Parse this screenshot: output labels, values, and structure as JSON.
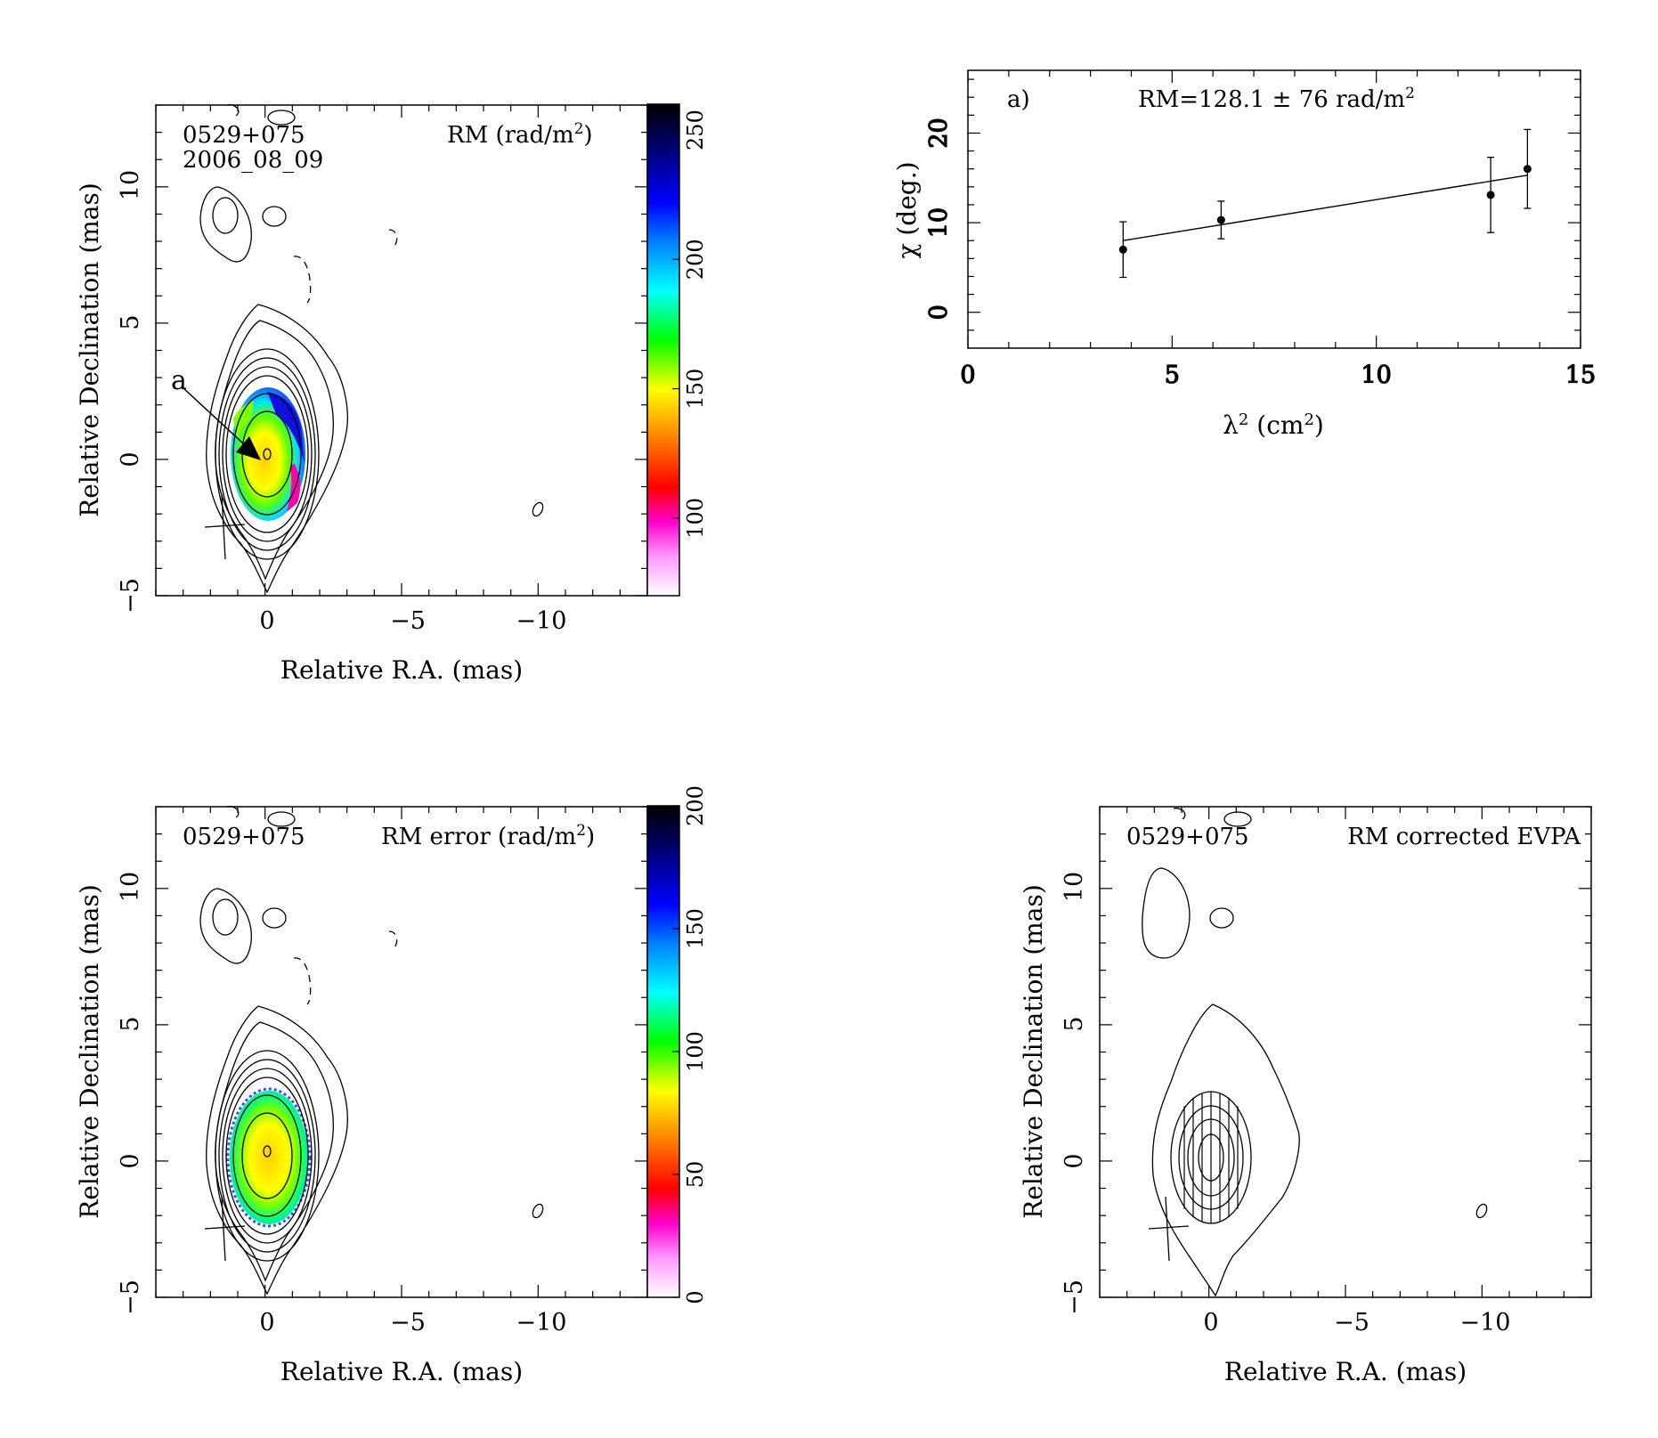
{
  "panels": {
    "rm_map": {
      "source_label": "0529+075",
      "date_label": "2006_08_09",
      "map_title_main": "RM (rad/m",
      "map_title_sup": "2",
      "map_title_close": ")",
      "pointer_label": "a",
      "xlabel": "Relative R.A. (mas)",
      "ylabel": "Relative Declination (mas)",
      "x_ticks": [
        "0",
        "−5",
        "−10"
      ],
      "y_ticks": [
        "−5",
        "0",
        "5",
        "10"
      ],
      "colorbar_ticks": [
        "100",
        "150",
        "200",
        "250"
      ]
    },
    "rm_error_map": {
      "source_label": "0529+075",
      "map_title_main": "RM error (rad/m",
      "map_title_sup": "2",
      "map_title_close": ")",
      "xlabel": "Relative R.A. (mas)",
      "ylabel": "Relative Declination (mas)",
      "x_ticks": [
        "0",
        "−5",
        "−10"
      ],
      "y_ticks": [
        "−5",
        "0",
        "5",
        "10"
      ],
      "colorbar_ticks": [
        "0",
        "50",
        "100",
        "150",
        "200"
      ]
    },
    "evpa_map": {
      "source_label": "0529+075",
      "map_title": "RM corrected EVPA",
      "xlabel": "Relative R.A. (mas)",
      "ylabel": "Relative Declination (mas)",
      "x_ticks": [
        "0",
        "−5",
        "−10"
      ],
      "y_ticks": [
        "−5",
        "0",
        "5",
        "10"
      ]
    },
    "fit": {
      "panel_label": "a)",
      "annotation_main": "RM=128.1 ± 76 rad/m",
      "annotation_sup": "2",
      "xlabel_main": "λ",
      "xlabel_sup1": "2",
      "xlabel_mid": " (cm",
      "xlabel_sup2": "2",
      "xlabel_close": ")",
      "ylabel": "χ (deg.)"
    }
  },
  "chart_data": [
    {
      "type": "heatmap",
      "name": "rm_map",
      "xlim": [
        4,
        -14
      ],
      "ylim": [
        -5,
        13
      ],
      "colorbar_range": [
        70,
        260
      ],
      "colorbar_ticks": [
        100,
        150,
        200,
        250
      ],
      "colormap": [
        "#ffffff",
        "#ff66ff",
        "#ff0080",
        "#ff0000",
        "#ff8000",
        "#ffff00",
        "#80ff00",
        "#00ff00",
        "#00ffff",
        "#0080ff",
        "#0000ff",
        "#000080",
        "#000000"
      ]
    },
    {
      "type": "heatmap",
      "name": "rm_error_map",
      "xlim": [
        4,
        -14
      ],
      "ylim": [
        -5,
        13
      ],
      "colorbar_range": [
        0,
        200
      ],
      "colorbar_ticks": [
        0,
        50,
        100,
        150,
        200
      ]
    },
    {
      "type": "heatmap",
      "name": "evpa_map",
      "xlim": [
        4,
        -14
      ],
      "ylim": [
        -5,
        13
      ]
    },
    {
      "type": "scatter",
      "name": "rm_fit",
      "x": [
        3.8,
        6.2,
        12.8,
        13.7
      ],
      "y": [
        7.0,
        10.3,
        13.1,
        16.0
      ],
      "yerr": [
        3.1,
        2.1,
        4.2,
        4.4
      ],
      "fit_line": {
        "x": [
          3.8,
          13.7
        ],
        "y": [
          8.0,
          15.3
        ]
      },
      "xlim": [
        0,
        15
      ],
      "ylim": [
        -4,
        27
      ],
      "x_ticks": [
        0,
        5,
        10,
        15
      ],
      "y_ticks": [
        0,
        10,
        20
      ]
    }
  ]
}
